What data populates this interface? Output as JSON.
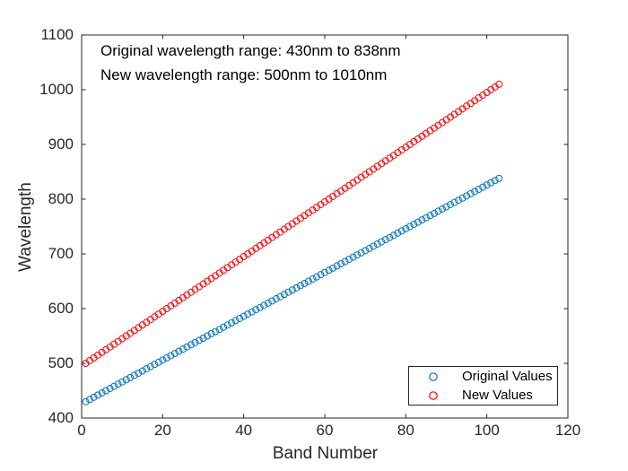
{
  "window": {
    "background": "#ffffff"
  },
  "colors": {
    "axis": "#262626",
    "tick_label": "#262626",
    "annotation_text": "#000000",
    "series_blue": "#0072BD",
    "series_red": "#FF0000"
  },
  "chart_data": {
    "type": "scatter",
    "marker": "open-circle",
    "title": "",
    "xlabel": "Band Number",
    "ylabel": "Wavelength",
    "xlim": [
      0,
      120
    ],
    "ylim": [
      400,
      1100
    ],
    "xticks": [
      0,
      20,
      40,
      60,
      80,
      100,
      120
    ],
    "yticks": [
      400,
      500,
      600,
      700,
      800,
      900,
      1000,
      1100
    ],
    "grid": false,
    "box": true,
    "tick_direction": "in",
    "annotations": [
      "Original wavelength range: 430nm to 838nm",
      "New wavelength range: 500nm to 1010nm"
    ],
    "series": [
      {
        "name": "Original Values",
        "color": "#0072BD",
        "x_start": 1,
        "x_end": 103,
        "count": 103,
        "y_start": 430,
        "y_end": 838,
        "y_step": 4
      },
      {
        "name": "New Values",
        "color": "#FF0000",
        "x_start": 1,
        "x_end": 103,
        "count": 103,
        "y_start": 500,
        "y_end": 1010,
        "y_step": 5
      }
    ],
    "legend": {
      "position": "lower-right",
      "entries": [
        "Original Values",
        "New Values"
      ]
    }
  }
}
